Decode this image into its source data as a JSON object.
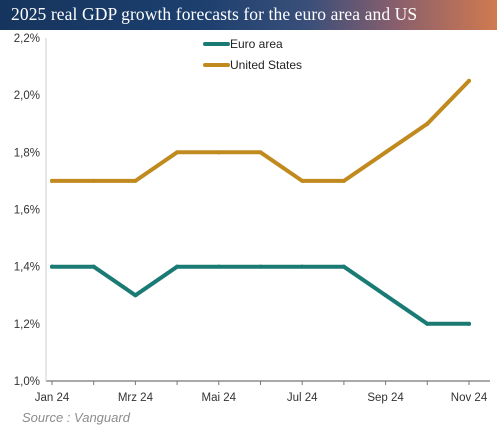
{
  "chart_data": {
    "type": "line",
    "title": "2025 real GDP growth forecasts for the euro area and US",
    "categories": [
      "Jan 24",
      "Feb 24",
      "Mrz 24",
      "Apr 24",
      "Mai 24",
      "Jun 24",
      "Jul 24",
      "Aug 24",
      "Sep 24",
      "Okt 24",
      "Nov 24"
    ],
    "tick_labels": [
      "Jan 24",
      "Mrz 24",
      "Mai 24",
      "Jul 24",
      "Sep 24",
      "Nov 24"
    ],
    "series": [
      {
        "name": "Euro area",
        "color": "#1a7a74",
        "values": [
          1.4,
          1.4,
          1.3,
          1.4,
          1.4,
          1.4,
          1.4,
          1.4,
          1.3,
          1.2,
          1.2
        ]
      },
      {
        "name": "United States",
        "color": "#c08a1e",
        "values": [
          1.7,
          1.7,
          1.7,
          1.8,
          1.8,
          1.8,
          1.7,
          1.7,
          1.8,
          1.9,
          2.05
        ]
      }
    ],
    "ylim": [
      1.0,
      2.2
    ],
    "yticks": [
      "1,0%",
      "1,2%",
      "1,4%",
      "1,6%",
      "1,8%",
      "2,0%",
      "2,2%"
    ],
    "xlabel": "",
    "ylabel": "",
    "grid": false,
    "legend": "top-center"
  },
  "source": "Source : Vanguard"
}
